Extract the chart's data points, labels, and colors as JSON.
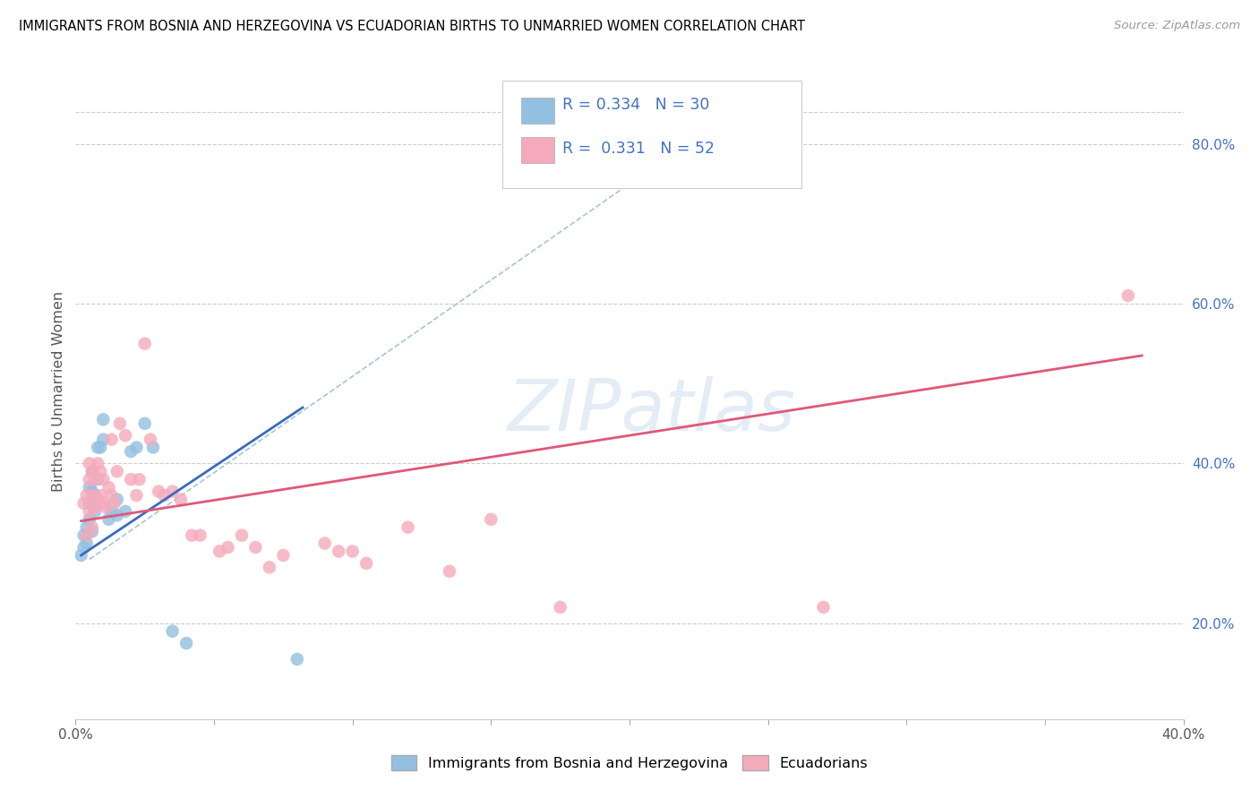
{
  "title": "IMMIGRANTS FROM BOSNIA AND HERZEGOVINA VS ECUADORIAN BIRTHS TO UNMARRIED WOMEN CORRELATION CHART",
  "source": "Source: ZipAtlas.com",
  "ylabel": "Births to Unmarried Women",
  "legend1_label": "Immigrants from Bosnia and Herzegovina",
  "legend2_label": "Ecuadorians",
  "xlim": [
    0.0,
    0.4
  ],
  "ylim": [
    0.08,
    0.9
  ],
  "ytick_vals_right": [
    0.2,
    0.4,
    0.6,
    0.8
  ],
  "ytick_labels_right": [
    "20.0%",
    "40.0%",
    "60.0%",
    "80.0%"
  ],
  "R1": 0.334,
  "N1": 30,
  "R2": 0.331,
  "N2": 52,
  "color_blue_dot": "#93C0E0",
  "color_pink_dot": "#F5AABB",
  "color_blue_line": "#3A6BC0",
  "color_pink_line": "#E05878",
  "color_dash_line": "#9BBDD8",
  "watermark_text": "ZIPatlas",
  "blue_line_x": [
    0.002,
    0.082
  ],
  "blue_line_y": [
    0.285,
    0.47
  ],
  "pink_line_x": [
    0.002,
    0.385
  ],
  "pink_line_y": [
    0.328,
    0.535
  ],
  "dash_line_x": [
    0.005,
    0.2
  ],
  "dash_line_y": [
    0.28,
    0.75
  ],
  "blue_dots": [
    [
      0.002,
      0.285
    ],
    [
      0.003,
      0.295
    ],
    [
      0.003,
      0.31
    ],
    [
      0.004,
      0.3
    ],
    [
      0.004,
      0.32
    ],
    [
      0.005,
      0.33
    ],
    [
      0.005,
      0.35
    ],
    [
      0.005,
      0.37
    ],
    [
      0.006,
      0.315
    ],
    [
      0.006,
      0.365
    ],
    [
      0.006,
      0.39
    ],
    [
      0.007,
      0.34
    ],
    [
      0.007,
      0.36
    ],
    [
      0.008,
      0.38
    ],
    [
      0.008,
      0.42
    ],
    [
      0.009,
      0.42
    ],
    [
      0.01,
      0.43
    ],
    [
      0.01,
      0.455
    ],
    [
      0.012,
      0.33
    ],
    [
      0.013,
      0.34
    ],
    [
      0.015,
      0.335
    ],
    [
      0.015,
      0.355
    ],
    [
      0.018,
      0.34
    ],
    [
      0.02,
      0.415
    ],
    [
      0.022,
      0.42
    ],
    [
      0.025,
      0.45
    ],
    [
      0.028,
      0.42
    ],
    [
      0.035,
      0.19
    ],
    [
      0.04,
      0.175
    ],
    [
      0.08,
      0.155
    ]
  ],
  "pink_dots": [
    [
      0.003,
      0.35
    ],
    [
      0.004,
      0.31
    ],
    [
      0.004,
      0.36
    ],
    [
      0.005,
      0.34
    ],
    [
      0.005,
      0.38
    ],
    [
      0.005,
      0.4
    ],
    [
      0.006,
      0.32
    ],
    [
      0.006,
      0.36
    ],
    [
      0.006,
      0.39
    ],
    [
      0.007,
      0.345
    ],
    [
      0.007,
      0.38
    ],
    [
      0.008,
      0.355
    ],
    [
      0.008,
      0.4
    ],
    [
      0.009,
      0.36
    ],
    [
      0.009,
      0.39
    ],
    [
      0.01,
      0.35
    ],
    [
      0.01,
      0.38
    ],
    [
      0.011,
      0.345
    ],
    [
      0.012,
      0.37
    ],
    [
      0.013,
      0.36
    ],
    [
      0.013,
      0.43
    ],
    [
      0.014,
      0.35
    ],
    [
      0.015,
      0.39
    ],
    [
      0.016,
      0.45
    ],
    [
      0.018,
      0.435
    ],
    [
      0.02,
      0.38
    ],
    [
      0.022,
      0.36
    ],
    [
      0.023,
      0.38
    ],
    [
      0.025,
      0.55
    ],
    [
      0.027,
      0.43
    ],
    [
      0.03,
      0.365
    ],
    [
      0.032,
      0.36
    ],
    [
      0.035,
      0.365
    ],
    [
      0.038,
      0.355
    ],
    [
      0.042,
      0.31
    ],
    [
      0.045,
      0.31
    ],
    [
      0.052,
      0.29
    ],
    [
      0.055,
      0.295
    ],
    [
      0.06,
      0.31
    ],
    [
      0.065,
      0.295
    ],
    [
      0.07,
      0.27
    ],
    [
      0.075,
      0.285
    ],
    [
      0.09,
      0.3
    ],
    [
      0.095,
      0.29
    ],
    [
      0.1,
      0.29
    ],
    [
      0.105,
      0.275
    ],
    [
      0.12,
      0.32
    ],
    [
      0.135,
      0.265
    ],
    [
      0.15,
      0.33
    ],
    [
      0.175,
      0.22
    ],
    [
      0.27,
      0.22
    ],
    [
      0.38,
      0.61
    ]
  ]
}
